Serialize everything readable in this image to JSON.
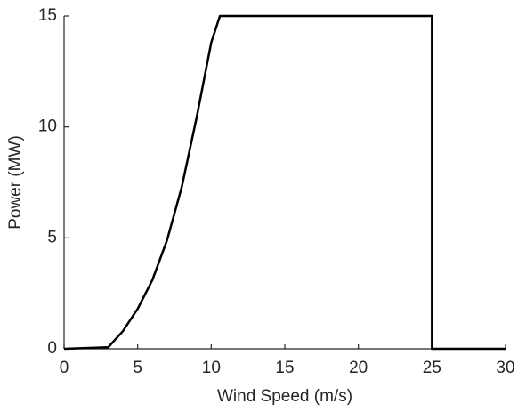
{
  "chart_data": {
    "type": "line",
    "x_label": "Wind Speed (m/s)",
    "y_label": "Power (MW)",
    "xlim": [
      0,
      30
    ],
    "xticks": [
      0,
      5,
      10,
      15,
      20,
      25,
      30
    ],
    "ylim": [
      0,
      15
    ],
    "yticks": [
      0,
      5,
      10,
      15
    ],
    "grid": false,
    "series": [
      {
        "color": "#000000",
        "x": [
          0,
          3,
          4,
          5,
          6,
          7,
          8,
          9,
          10,
          10.59,
          25,
          25,
          30
        ],
        "values": [
          0,
          0.07,
          0.8,
          1.8,
          3.1,
          4.9,
          7.3,
          10.4,
          13.8,
          15,
          15,
          0,
          0
        ]
      }
    ]
  }
}
